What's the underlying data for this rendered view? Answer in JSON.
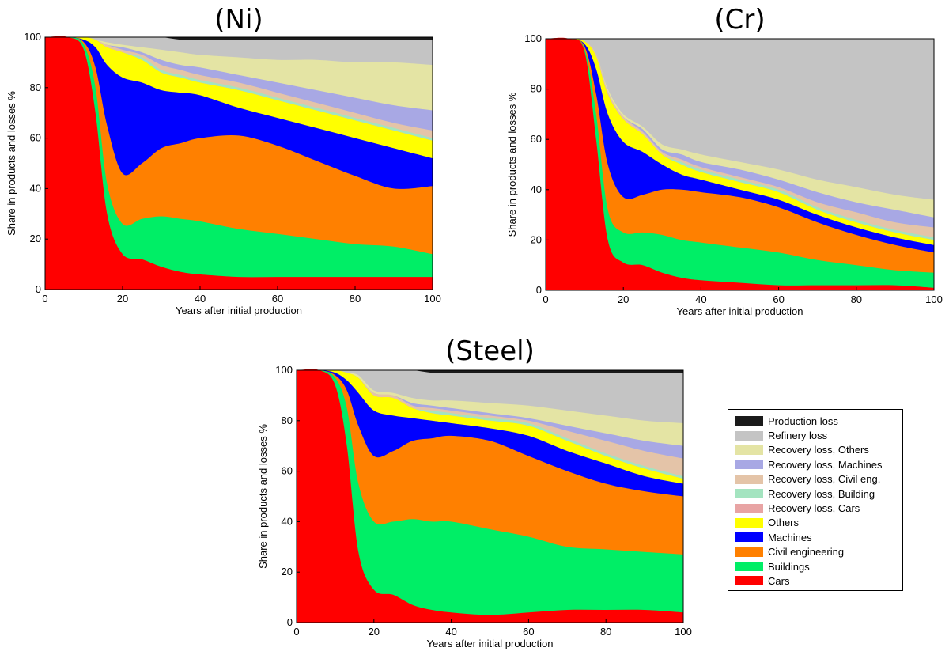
{
  "legend": {
    "items": [
      {
        "label": "Production loss",
        "color": "#1a1a1a"
      },
      {
        "label": "Refinery loss",
        "color": "#c4c4c4"
      },
      {
        "label": "Recovery loss, Others",
        "color": "#e4e4a4"
      },
      {
        "label": "Recovery loss, Machines",
        "color": "#a8a8e4"
      },
      {
        "label": "Recovery loss, Civil eng.",
        "color": "#e4c4a8"
      },
      {
        "label": "Recovery loss, Building",
        "color": "#a4e4c0"
      },
      {
        "label": "Recovery loss, Cars",
        "color": "#e8a4a4"
      },
      {
        "label": "Others",
        "color": "#ffff00"
      },
      {
        "label": "Machines",
        "color": "#0000ff"
      },
      {
        "label": "Civil engineering",
        "color": "#ff8000"
      },
      {
        "label": "Buildings",
        "color": "#00ee66"
      },
      {
        "label": "Cars",
        "color": "#ff0000"
      }
    ]
  },
  "chart_data": [
    {
      "type": "area",
      "title": "(Ni)",
      "xlabel": "Years after initial production",
      "ylabel": "Share in products and losses %",
      "xlim": [
        0,
        100
      ],
      "ylim": [
        0,
        100
      ],
      "xticks": [
        0,
        20,
        40,
        60,
        80,
        100
      ],
      "yticks": [
        0,
        20,
        40,
        60,
        80,
        100
      ],
      "x": [
        0,
        6,
        10,
        13,
        16,
        20,
        25,
        30,
        35,
        40,
        50,
        60,
        70,
        80,
        90,
        100
      ],
      "series": [
        {
          "name": "Cars",
          "values": [
            100,
            100,
            95,
            70,
            30,
            14,
            12,
            9,
            7,
            6,
            5,
            5,
            5,
            5,
            5,
            5
          ]
        },
        {
          "name": "Buildings",
          "values": [
            100,
            100,
            97,
            80,
            42,
            26,
            28,
            29,
            28,
            27,
            24,
            22,
            20,
            18,
            17,
            14
          ]
        },
        {
          "name": "Civil engineering",
          "values": [
            100,
            100,
            98,
            88,
            65,
            46,
            50,
            56,
            58,
            60,
            61,
            57,
            51,
            45,
            40,
            41
          ]
        },
        {
          "name": "Machines",
          "values": [
            100,
            100,
            99,
            96,
            89,
            84,
            82,
            79,
            78,
            77,
            72,
            68,
            64,
            60,
            56,
            52
          ]
        },
        {
          "name": "Others",
          "values": [
            100,
            100,
            100,
            99,
            96,
            94,
            91,
            86,
            84,
            82,
            79,
            75,
            71,
            67,
            63,
            59
          ]
        },
        {
          "name": "Recovery loss, Cars",
          "values": [
            100,
            100,
            100,
            99,
            96,
            94,
            91,
            86,
            84,
            82,
            79,
            75,
            71,
            67,
            63,
            59
          ]
        },
        {
          "name": "Recovery loss, Building",
          "values": [
            100,
            100,
            100,
            99,
            96,
            94,
            92,
            87,
            85,
            83,
            80,
            76,
            72,
            68,
            64,
            60
          ]
        },
        {
          "name": "Recovery loss, Civil eng.",
          "values": [
            100,
            100,
            100,
            99,
            97,
            95,
            93,
            89,
            87,
            85,
            82,
            78,
            74,
            70,
            66,
            63
          ]
        },
        {
          "name": "Recovery loss, Machines",
          "values": [
            100,
            100,
            100,
            99,
            97,
            96,
            94,
            91,
            89,
            88,
            85,
            82,
            79,
            76,
            73,
            71
          ]
        },
        {
          "name": "Recovery loss, Others",
          "values": [
            100,
            100,
            100,
            99,
            98,
            97,
            96,
            95,
            94,
            93,
            92,
            91,
            91,
            90,
            90,
            89
          ]
        },
        {
          "name": "Refinery loss",
          "values": [
            100,
            100,
            100,
            100,
            100,
            100,
            100,
            100,
            99,
            99,
            99,
            99,
            99,
            99,
            99,
            99
          ]
        },
        {
          "name": "Production loss",
          "values": [
            100,
            100,
            100,
            100,
            100,
            100,
            100,
            100,
            100,
            100,
            100,
            100,
            100,
            100,
            100,
            100
          ]
        }
      ]
    },
    {
      "type": "area",
      "title": "(Cr)",
      "xlabel": "Years after initial production",
      "ylabel": "Share in products and losses %",
      "xlim": [
        0,
        100
      ],
      "ylim": [
        0,
        100
      ],
      "xticks": [
        0,
        20,
        40,
        60,
        80,
        100
      ],
      "yticks": [
        0,
        20,
        40,
        60,
        80,
        100
      ],
      "x": [
        0,
        6,
        10,
        13,
        16,
        20,
        25,
        30,
        35,
        40,
        50,
        60,
        70,
        80,
        90,
        100
      ],
      "series": [
        {
          "name": "Cars",
          "values": [
            100,
            100,
            95,
            60,
            20,
            11,
            10,
            7,
            5,
            4,
            3,
            2,
            2,
            2,
            2,
            1
          ]
        },
        {
          "name": "Buildings",
          "values": [
            100,
            100,
            96,
            70,
            32,
            23,
            23,
            22,
            20,
            19,
            17,
            15,
            12,
            10,
            8,
            7
          ]
        },
        {
          "name": "Civil engineering",
          "values": [
            100,
            100,
            97,
            78,
            50,
            37,
            38,
            40,
            40,
            39,
            37,
            33,
            27,
            22,
            18,
            15
          ]
        },
        {
          "name": "Machines",
          "values": [
            100,
            100,
            98,
            88,
            70,
            59,
            55,
            50,
            46,
            44,
            40,
            36,
            30,
            25,
            21,
            18
          ]
        },
        {
          "name": "Others",
          "values": [
            100,
            100,
            99,
            93,
            78,
            68,
            62,
            54,
            50,
            47,
            43,
            39,
            32,
            27,
            23,
            20
          ]
        },
        {
          "name": "Recovery loss, Cars",
          "values": [
            100,
            100,
            99,
            93,
            78,
            68,
            62,
            54,
            50,
            47,
            43,
            39,
            32,
            27,
            23,
            20
          ]
        },
        {
          "name": "Recovery loss, Building",
          "values": [
            100,
            100,
            99,
            93,
            78,
            68,
            62,
            54,
            51,
            48,
            44,
            40,
            33,
            28,
            24,
            21
          ]
        },
        {
          "name": "Recovery loss, Civil eng.",
          "values": [
            100,
            100,
            99,
            94,
            79,
            69,
            63,
            55,
            52,
            49,
            45,
            41,
            35,
            31,
            27,
            25
          ]
        },
        {
          "name": "Recovery loss, Machines",
          "values": [
            100,
            100,
            99,
            94,
            79,
            69,
            64,
            56,
            54,
            51,
            48,
            44,
            39,
            35,
            32,
            29
          ]
        },
        {
          "name": "Recovery loss, Others",
          "values": [
            100,
            100,
            99,
            94,
            80,
            70,
            65,
            58,
            56,
            54,
            51,
            48,
            44,
            41,
            38,
            36
          ]
        },
        {
          "name": "Refinery loss",
          "values": [
            100,
            100,
            100,
            100,
            100,
            100,
            100,
            100,
            100,
            100,
            100,
            100,
            100,
            100,
            100,
            100
          ]
        },
        {
          "name": "Production loss",
          "values": [
            100,
            100,
            100,
            100,
            100,
            100,
            100,
            100,
            100,
            100,
            100,
            100,
            100,
            100,
            100,
            100
          ]
        }
      ]
    },
    {
      "type": "area",
      "title": "(Steel)",
      "xlabel": "Years after initial production",
      "ylabel": "Share in products and losses %",
      "xlim": [
        0,
        100
      ],
      "ylim": [
        0,
        100
      ],
      "xticks": [
        0,
        20,
        40,
        60,
        80,
        100
      ],
      "yticks": [
        0,
        20,
        40,
        60,
        80,
        100
      ],
      "x": [
        0,
        6,
        10,
        13,
        16,
        20,
        25,
        30,
        35,
        40,
        50,
        60,
        70,
        80,
        90,
        100
      ],
      "series": [
        {
          "name": "Cars",
          "values": [
            100,
            100,
            94,
            70,
            28,
            13,
            11,
            7,
            5,
            4,
            3,
            4,
            5,
            5,
            5,
            4
          ]
        },
        {
          "name": "Buildings",
          "values": [
            100,
            100,
            97,
            85,
            55,
            40,
            40,
            41,
            40,
            40,
            37,
            34,
            30,
            29,
            28,
            27
          ]
        },
        {
          "name": "Civil engineering",
          "values": [
            100,
            100,
            98,
            92,
            78,
            66,
            68,
            72,
            73,
            74,
            72,
            66,
            60,
            55,
            52,
            50
          ]
        },
        {
          "name": "Machines",
          "values": [
            100,
            100,
            99,
            96,
            91,
            84,
            82,
            81,
            80,
            79,
            77,
            74,
            68,
            63,
            58,
            55
          ]
        },
        {
          "name": "Others",
          "values": [
            100,
            100,
            100,
            99,
            97,
            90,
            89,
            85,
            83,
            82,
            80,
            78,
            72,
            66,
            61,
            57
          ]
        },
        {
          "name": "Recovery loss, Cars",
          "values": [
            100,
            100,
            100,
            99,
            97,
            90,
            89,
            85,
            83,
            82,
            80,
            78,
            72,
            66,
            61,
            57
          ]
        },
        {
          "name": "Recovery loss, Building",
          "values": [
            100,
            100,
            100,
            99,
            97,
            90,
            89,
            85,
            84,
            83,
            81,
            79,
            73,
            67,
            62,
            58
          ]
        },
        {
          "name": "Recovery loss, Civil eng.",
          "values": [
            100,
            100,
            100,
            99,
            97,
            91,
            90,
            86,
            85,
            84,
            82,
            80,
            76,
            72,
            68,
            65
          ]
        },
        {
          "name": "Recovery loss, Machines",
          "values": [
            100,
            100,
            100,
            99,
            97,
            91,
            90,
            87,
            86,
            85,
            83,
            81,
            78,
            75,
            72,
            70
          ]
        },
        {
          "name": "Recovery loss, Others",
          "values": [
            100,
            100,
            100,
            99,
            98,
            92,
            91,
            89,
            88,
            88,
            87,
            86,
            84,
            82,
            80,
            79
          ]
        },
        {
          "name": "Refinery loss",
          "values": [
            100,
            100,
            100,
            100,
            100,
            100,
            100,
            100,
            99,
            99,
            99,
            99,
            99,
            99,
            99,
            99
          ]
        },
        {
          "name": "Production loss",
          "values": [
            100,
            100,
            100,
            100,
            100,
            100,
            100,
            100,
            100,
            100,
            100,
            100,
            100,
            100,
            100,
            100
          ]
        }
      ]
    }
  ]
}
